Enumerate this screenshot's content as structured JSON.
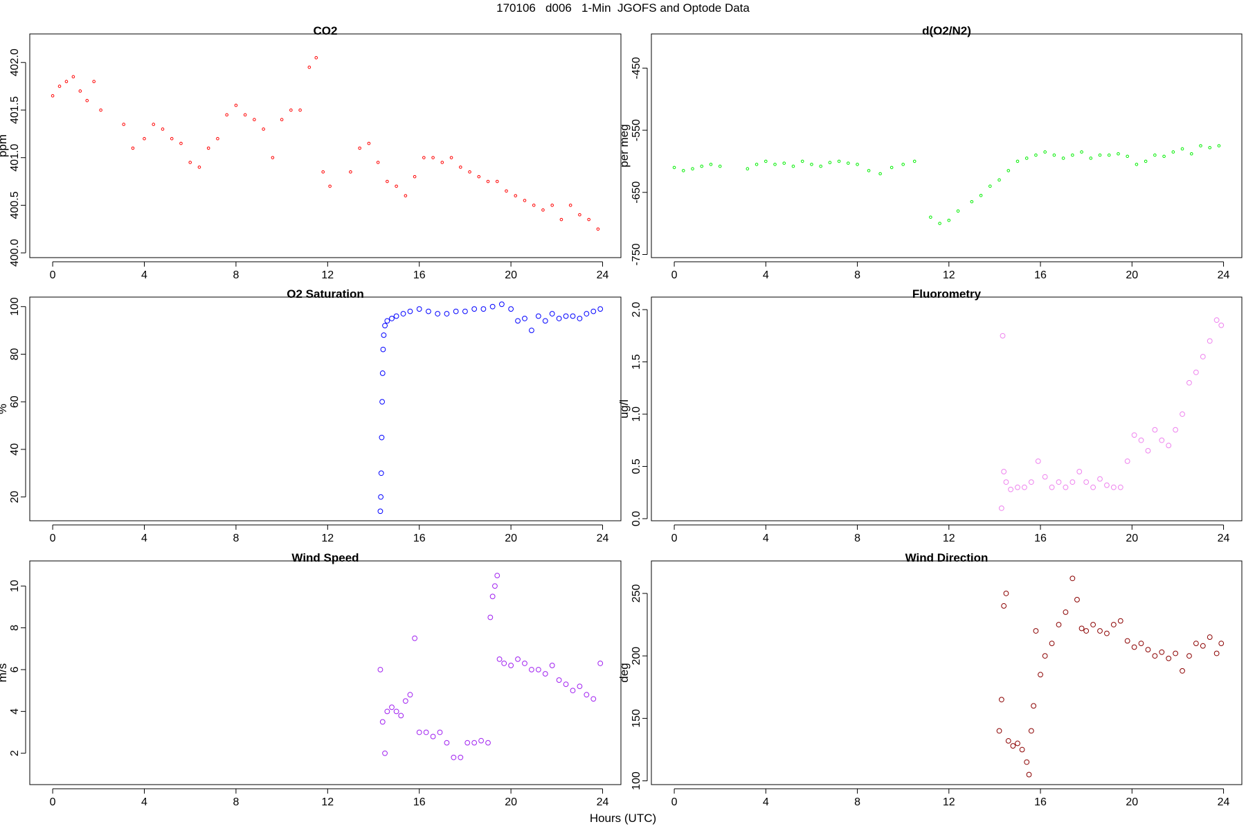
{
  "figure": {
    "suptitle": "170106   d006   1-Min  JGOFS and Optode Data",
    "xlabel": "Hours (UTC)"
  },
  "chart_data": [
    {
      "type": "scatter",
      "title": "CO2",
      "ylabel": "ppm",
      "color": "#ff0000",
      "xlim": [
        -1,
        24.8
      ],
      "ylim": [
        399.95,
        402.3
      ],
      "xticks": [
        0,
        4,
        8,
        12,
        16,
        20,
        24
      ],
      "yticks": [
        400.0,
        400.5,
        401.0,
        401.5,
        402.0
      ],
      "ytick_labels": [
        "400.0",
        "400.5",
        "401.0",
        "401.5",
        "402.0"
      ],
      "series": [
        {
          "x": [
            0.0,
            0.3,
            0.6,
            0.9,
            1.2,
            1.5,
            1.8,
            2.1,
            3.1,
            3.5,
            4.0,
            4.4,
            4.8,
            5.2,
            5.6,
            6.0,
            6.4,
            6.8,
            7.2,
            7.6,
            8.0,
            8.4,
            8.8,
            9.2,
            9.6,
            10.0,
            10.4,
            10.8,
            11.2,
            11.5,
            11.8,
            12.1,
            13.0,
            13.4,
            13.8,
            14.2,
            14.6,
            15.0,
            15.4,
            15.8,
            16.2,
            16.6,
            17.0,
            17.4,
            17.8,
            18.2,
            18.6,
            19.0,
            19.4,
            19.8,
            20.2,
            20.6,
            21.0,
            21.4,
            21.8,
            22.2,
            22.6,
            23.0,
            23.4,
            23.8
          ],
          "y": [
            401.65,
            401.75,
            401.8,
            401.85,
            401.7,
            401.6,
            401.8,
            401.5,
            401.35,
            401.1,
            401.2,
            401.35,
            401.3,
            401.2,
            401.15,
            400.95,
            400.9,
            401.1,
            401.2,
            401.45,
            401.55,
            401.45,
            401.4,
            401.3,
            401.0,
            401.4,
            401.5,
            401.5,
            401.95,
            402.05,
            400.85,
            400.7,
            400.85,
            401.1,
            401.15,
            400.95,
            400.75,
            400.7,
            400.6,
            400.8,
            401.0,
            401.0,
            400.95,
            401.0,
            400.9,
            400.85,
            400.8,
            400.75,
            400.75,
            400.65,
            400.6,
            400.55,
            400.5,
            400.45,
            400.5,
            400.35,
            400.5,
            400.4,
            400.35,
            400.25
          ]
        }
      ]
    },
    {
      "type": "scatter",
      "title": "d(O2/N2)",
      "ylabel": "per meg",
      "color": "#00ee00",
      "xlim": [
        -1,
        24.8
      ],
      "ylim": [
        -755,
        -395
      ],
      "xticks": [
        0,
        4,
        8,
        12,
        16,
        20,
        24
      ],
      "yticks": [
        -750,
        -650,
        -550,
        -450
      ],
      "ytick_labels": [
        "-750",
        "-650",
        "-550",
        "-450"
      ],
      "series": [
        {
          "x": [
            0.0,
            0.4,
            0.8,
            1.2,
            1.6,
            2.0,
            3.2,
            3.6,
            4.0,
            4.4,
            4.8,
            5.2,
            5.6,
            6.0,
            6.4,
            6.8,
            7.2,
            7.6,
            8.0,
            8.5,
            9.0,
            9.5,
            10.0,
            10.5,
            11.2,
            11.6,
            12.0,
            12.4,
            13.0,
            13.4,
            13.8,
            14.2,
            14.6,
            15.0,
            15.4,
            15.8,
            16.2,
            16.6,
            17.0,
            17.4,
            17.8,
            18.2,
            18.6,
            19.0,
            19.4,
            19.8,
            20.2,
            20.6,
            21.0,
            21.4,
            21.8,
            22.2,
            22.6,
            23.0,
            23.4,
            23.8
          ],
          "y": [
            -610,
            -615,
            -612,
            -608,
            -605,
            -608,
            -612,
            -605,
            -600,
            -605,
            -603,
            -608,
            -600,
            -605,
            -608,
            -602,
            -600,
            -603,
            -605,
            -615,
            -620,
            -610,
            -605,
            -600,
            -690,
            -700,
            -695,
            -680,
            -665,
            -655,
            -640,
            -630,
            -615,
            -600,
            -595,
            -590,
            -585,
            -590,
            -595,
            -590,
            -585,
            -595,
            -590,
            -590,
            -588,
            -592,
            -605,
            -600,
            -590,
            -592,
            -585,
            -580,
            -588,
            -575,
            -578,
            -575
          ]
        }
      ]
    },
    {
      "type": "scatter",
      "title": "O2 Saturation",
      "ylabel": "%",
      "color": "#0000ff",
      "xlim": [
        -1,
        24.8
      ],
      "ylim": [
        10,
        104
      ],
      "xticks": [
        0,
        4,
        8,
        12,
        16,
        20,
        24
      ],
      "yticks": [
        20,
        40,
        60,
        80,
        100
      ],
      "ytick_labels": [
        "20",
        "40",
        "60",
        "80",
        "100"
      ],
      "series": [
        {
          "x": [
            14.3,
            14.32,
            14.34,
            14.36,
            14.38,
            14.4,
            14.42,
            14.45,
            14.5,
            14.6,
            14.8,
            15.0,
            15.3,
            15.6,
            16.0,
            16.4,
            16.8,
            17.2,
            17.6,
            18.0,
            18.4,
            18.8,
            19.2,
            19.6,
            20.0,
            20.3,
            20.6,
            20.9,
            21.2,
            21.5,
            21.8,
            22.1,
            22.4,
            22.7,
            23.0,
            23.3,
            23.6,
            23.9
          ],
          "y": [
            14,
            20,
            30,
            45,
            60,
            72,
            82,
            88,
            92,
            94,
            95,
            96,
            97,
            98,
            99,
            98,
            97,
            97,
            98,
            98,
            99,
            99,
            100,
            101,
            99,
            94,
            95,
            90,
            96,
            94,
            97,
            95,
            96,
            96,
            95,
            97,
            98,
            99
          ]
        }
      ]
    },
    {
      "type": "scatter",
      "title": "Fluorometry",
      "ylabel": "ug/l",
      "color": "#ee82ee",
      "xlim": [
        -1,
        24.8
      ],
      "ylim": [
        -0.02,
        2.12
      ],
      "xticks": [
        0,
        4,
        8,
        12,
        16,
        20,
        24
      ],
      "yticks": [
        0.0,
        0.5,
        1.0,
        1.5,
        2.0
      ],
      "ytick_labels": [
        "0.0",
        "0.5",
        "1.0",
        "1.5",
        "2.0"
      ],
      "series": [
        {
          "x": [
            14.3,
            14.35,
            14.4,
            14.5,
            14.7,
            15.0,
            15.3,
            15.6,
            15.9,
            16.2,
            16.5,
            16.8,
            17.1,
            17.4,
            17.7,
            18.0,
            18.3,
            18.6,
            18.9,
            19.2,
            19.5,
            19.8,
            20.1,
            20.4,
            20.7,
            21.0,
            21.3,
            21.6,
            21.9,
            22.2,
            22.5,
            22.8,
            23.1,
            23.4,
            23.7,
            23.9
          ],
          "y": [
            0.1,
            1.75,
            0.45,
            0.35,
            0.28,
            0.3,
            0.3,
            0.35,
            0.55,
            0.4,
            0.3,
            0.35,
            0.3,
            0.35,
            0.45,
            0.35,
            0.3,
            0.38,
            0.32,
            0.3,
            0.3,
            0.55,
            0.8,
            0.75,
            0.65,
            0.85,
            0.75,
            0.7,
            0.85,
            1.0,
            1.3,
            1.4,
            1.55,
            1.7,
            1.9,
            1.85
          ]
        }
      ]
    },
    {
      "type": "scatter",
      "title": "Wind Speed",
      "ylabel": "m/s",
      "color": "#a020f0",
      "xlim": [
        -1,
        24.8
      ],
      "ylim": [
        0.5,
        11.2
      ],
      "xticks": [
        0,
        4,
        8,
        12,
        16,
        20,
        24
      ],
      "yticks": [
        2,
        4,
        6,
        8,
        10
      ],
      "ytick_labels": [
        "2",
        "4",
        "6",
        "8",
        "10"
      ],
      "series": [
        {
          "x": [
            14.3,
            14.4,
            14.5,
            14.6,
            14.8,
            15.0,
            15.2,
            15.4,
            15.6,
            15.8,
            16.0,
            16.3,
            16.6,
            16.9,
            17.2,
            17.5,
            17.8,
            18.1,
            18.4,
            18.7,
            19.0,
            19.1,
            19.2,
            19.3,
            19.4,
            19.5,
            19.7,
            20.0,
            20.3,
            20.6,
            20.9,
            21.2,
            21.5,
            21.8,
            22.1,
            22.4,
            22.7,
            23.0,
            23.3,
            23.6,
            23.9
          ],
          "y": [
            6.0,
            3.5,
            2.0,
            4.0,
            4.2,
            4.0,
            3.8,
            4.5,
            4.8,
            7.5,
            3.0,
            3.0,
            2.8,
            3.0,
            2.5,
            1.8,
            1.8,
            2.5,
            2.5,
            2.6,
            2.5,
            8.5,
            9.5,
            10.0,
            10.5,
            6.5,
            6.3,
            6.2,
            6.5,
            6.3,
            6.0,
            6.0,
            5.8,
            6.2,
            5.5,
            5.3,
            5.0,
            5.2,
            4.8,
            4.6,
            6.3
          ]
        }
      ]
    },
    {
      "type": "scatter",
      "title": "Wind Direction",
      "ylabel": "deg",
      "color": "#8b0000",
      "xlim": [
        -1,
        24.8
      ],
      "ylim": [
        97,
        276
      ],
      "xticks": [
        0,
        4,
        8,
        12,
        16,
        20,
        24
      ],
      "yticks": [
        100,
        150,
        200,
        250
      ],
      "ytick_labels": [
        "100",
        "150",
        "200",
        "250"
      ],
      "series": [
        {
          "x": [
            14.2,
            14.3,
            14.4,
            14.5,
            14.6,
            14.8,
            15.0,
            15.2,
            15.4,
            15.5,
            15.6,
            15.7,
            15.8,
            16.0,
            16.2,
            16.5,
            16.8,
            17.1,
            17.4,
            17.6,
            17.8,
            18.0,
            18.3,
            18.6,
            18.9,
            19.2,
            19.5,
            19.8,
            20.1,
            20.4,
            20.7,
            21.0,
            21.3,
            21.6,
            21.9,
            22.2,
            22.5,
            22.8,
            23.1,
            23.4,
            23.7,
            23.9
          ],
          "y": [
            140,
            165,
            240,
            250,
            132,
            128,
            130,
            125,
            115,
            105,
            140,
            160,
            220,
            185,
            200,
            210,
            225,
            235,
            262,
            245,
            222,
            220,
            225,
            220,
            218,
            225,
            228,
            212,
            207,
            210,
            205,
            200,
            203,
            198,
            202,
            188,
            200,
            210,
            208,
            215,
            202,
            210
          ]
        }
      ]
    }
  ]
}
